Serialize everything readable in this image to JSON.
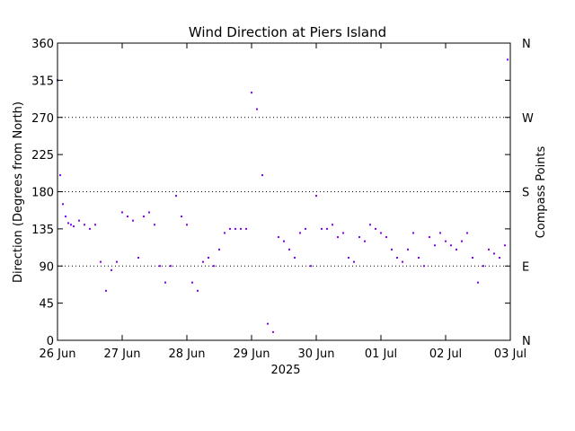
{
  "chart_data": {
    "type": "scatter",
    "title": "Wind Direction at Piers Island",
    "ylabel": "Direction (Degrees from North)",
    "ylabel_right": "Compass Points",
    "xlabel": "2025",
    "ylim": [
      0,
      360
    ],
    "yticks": [
      0,
      45,
      90,
      135,
      180,
      225,
      270,
      315,
      360
    ],
    "compass_ticks": [
      {
        "value": 0,
        "label": "N"
      },
      {
        "value": 90,
        "label": "E"
      },
      {
        "value": 180,
        "label": "S"
      },
      {
        "value": 270,
        "label": "W"
      },
      {
        "value": 360,
        "label": "N"
      }
    ],
    "gridlines_y": [
      90,
      180,
      270
    ],
    "xlim": [
      "2025-06-26",
      "2025-07-03"
    ],
    "xticks": [
      "26 Jun",
      "27 Jun",
      "28 Jun",
      "29 Jun",
      "30 Jun",
      "01 Jul",
      "02 Jul",
      "03 Jul"
    ],
    "marker_color": "#8000ff",
    "series": [
      {
        "x": [
          "2025-06-26T00:00",
          "2025-06-26T01:00",
          "2025-06-26T02:00",
          "2025-06-26T03:00",
          "2025-06-26T04:00",
          "2025-06-26T05:00",
          "2025-06-26T06:00",
          "2025-06-26T08:00",
          "2025-06-26T10:00",
          "2025-06-26T12:00",
          "2025-06-26T14:00",
          "2025-06-26T16:00",
          "2025-06-26T18:00",
          "2025-06-26T20:00",
          "2025-06-26T22:00",
          "2025-06-27T00:00",
          "2025-06-27T02:00",
          "2025-06-27T04:00",
          "2025-06-27T06:00",
          "2025-06-27T08:00",
          "2025-06-27T10:00",
          "2025-06-27T12:00",
          "2025-06-27T14:00",
          "2025-06-27T16:00",
          "2025-06-27T18:00",
          "2025-06-27T20:00",
          "2025-06-27T22:00",
          "2025-06-28T00:00",
          "2025-06-28T02:00",
          "2025-06-28T04:00",
          "2025-06-28T06:00",
          "2025-06-28T08:00",
          "2025-06-28T10:00",
          "2025-06-28T12:00",
          "2025-06-28T14:00",
          "2025-06-28T16:00",
          "2025-06-28T18:00",
          "2025-06-28T20:00",
          "2025-06-28T22:00",
          "2025-06-29T00:00",
          "2025-06-29T02:00",
          "2025-06-29T04:00",
          "2025-06-29T06:00",
          "2025-06-29T08:00",
          "2025-06-29T10:00",
          "2025-06-29T12:00",
          "2025-06-29T14:00",
          "2025-06-29T16:00",
          "2025-06-29T18:00",
          "2025-06-29T20:00",
          "2025-06-29T22:00",
          "2025-06-30T00:00",
          "2025-06-30T02:00",
          "2025-06-30T04:00",
          "2025-06-30T06:00",
          "2025-06-30T08:00",
          "2025-06-30T10:00",
          "2025-06-30T12:00",
          "2025-06-30T14:00",
          "2025-06-30T16:00",
          "2025-06-30T18:00",
          "2025-06-30T20:00",
          "2025-06-30T22:00",
          "2025-07-01T00:00",
          "2025-07-01T02:00",
          "2025-07-01T04:00",
          "2025-07-01T06:00",
          "2025-07-01T08:00",
          "2025-07-01T10:00",
          "2025-07-01T12:00",
          "2025-07-01T14:00",
          "2025-07-01T16:00",
          "2025-07-01T18:00",
          "2025-07-01T20:00",
          "2025-07-01T22:00",
          "2025-07-02T00:00",
          "2025-07-02T02:00",
          "2025-07-02T04:00",
          "2025-07-02T06:00",
          "2025-07-02T08:00",
          "2025-07-02T10:00",
          "2025-07-02T12:00",
          "2025-07-02T14:00",
          "2025-07-02T16:00",
          "2025-07-02T18:00",
          "2025-07-02T20:00",
          "2025-07-02T22:00",
          "2025-07-02T23:00"
        ],
        "y": [
          315,
          200,
          165,
          150,
          142,
          140,
          138,
          145,
          140,
          135,
          140,
          95,
          60,
          85,
          95,
          155,
          150,
          145,
          100,
          150,
          155,
          140,
          90,
          70,
          90,
          175,
          150,
          140,
          70,
          60,
          95,
          100,
          90,
          110,
          130,
          135,
          135,
          135,
          135,
          300,
          280,
          200,
          20,
          10,
          125,
          120,
          110,
          100,
          130,
          135,
          90,
          175,
          135,
          135,
          140,
          125,
          130,
          100,
          95,
          125,
          120,
          140,
          135,
          130,
          125,
          110,
          100,
          95,
          110,
          130,
          100,
          90,
          125,
          115,
          130,
          120,
          115,
          110,
          120,
          130,
          100,
          70,
          90,
          110,
          105,
          100,
          115,
          340
        ]
      }
    ]
  }
}
